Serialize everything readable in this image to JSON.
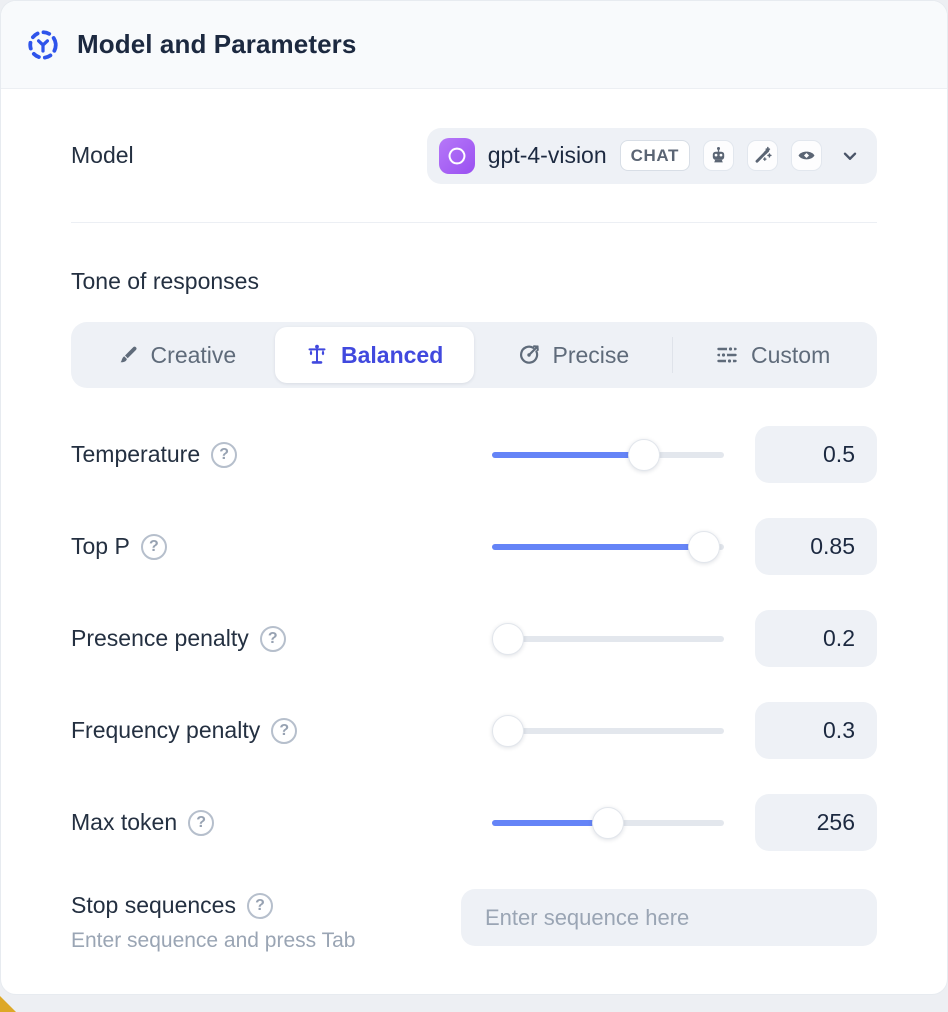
{
  "header": {
    "title": "Model and Parameters"
  },
  "model": {
    "label": "Model",
    "selected": "gpt-4-vision",
    "badge": "CHAT",
    "capability_icons": [
      "robot-icon",
      "magic-wand-icon",
      "eye-icon"
    ],
    "provider_icon": "openai-logo"
  },
  "tone": {
    "label": "Tone of responses",
    "options": [
      {
        "label": "Creative",
        "icon": "brush-icon",
        "selected": false
      },
      {
        "label": "Balanced",
        "icon": "scale-icon",
        "selected": true
      },
      {
        "label": "Precise",
        "icon": "target-icon",
        "selected": false
      },
      {
        "label": "Custom",
        "icon": "sliders-icon",
        "selected": false
      }
    ]
  },
  "sliders": [
    {
      "label": "Temperature",
      "value": "0.5",
      "percent": 68
    },
    {
      "label": "Top P",
      "value": "0.85",
      "percent": 98
    },
    {
      "label": "Presence penalty",
      "value": "0.2",
      "percent": 0
    },
    {
      "label": "Frequency penalty",
      "value": "0.3",
      "percent": 0
    },
    {
      "label": "Max token",
      "value": "256",
      "percent": 50
    }
  ],
  "stop_sequences": {
    "label": "Stop sequences",
    "hint": "Enter sequence and press Tab",
    "placeholder": "Enter sequence here"
  },
  "colors": {
    "accent_indigo": "#4149de",
    "slider_blue": "#6584f7",
    "header_icon_blue": "#2f54eb",
    "openai_purple": "#9a50f1",
    "field_gray": "#eef1f6",
    "text_dark": "#1c2940",
    "text_gray": "#5f6b7a"
  }
}
